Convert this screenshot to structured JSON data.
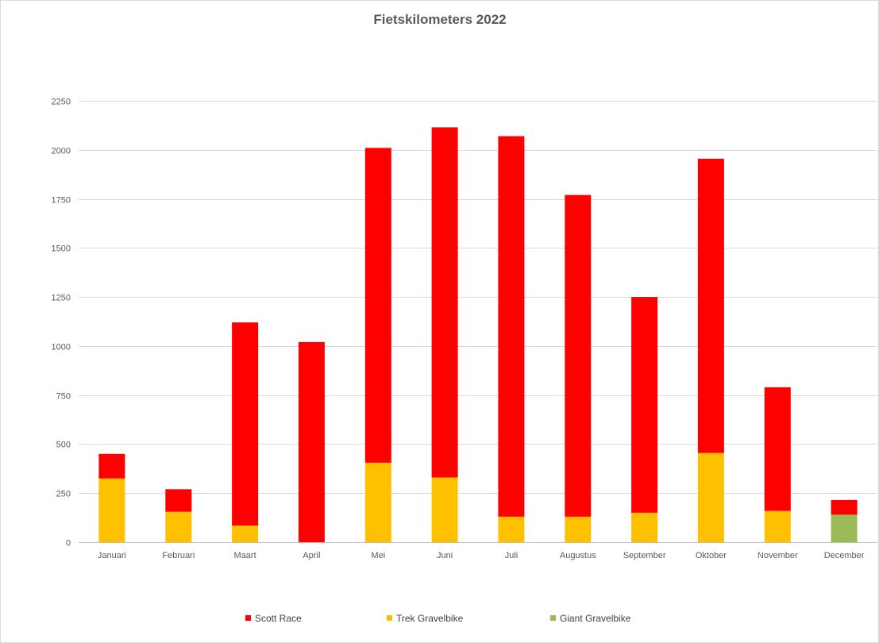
{
  "chart_data": {
    "type": "bar",
    "stacked": true,
    "title": "Fietskilometers 2022",
    "xlabel": "",
    "ylabel": "",
    "ylim": [
      0,
      2250
    ],
    "yticks": [
      0,
      250,
      500,
      750,
      1000,
      1250,
      1500,
      1750,
      2000,
      2250
    ],
    "grid": true,
    "legend_position": "bottom",
    "categories": [
      "Januari",
      "Februari",
      "Maart",
      "April",
      "Mei",
      "Juni",
      "Juli",
      "Augustus",
      "September",
      "Oktober",
      "November",
      "December"
    ],
    "series": [
      {
        "name": "Scott Race",
        "color": "#ff0000",
        "values": [
          125,
          115,
          1035,
          1020,
          1605,
          1785,
          1940,
          1640,
          1100,
          1500,
          630,
          75
        ]
      },
      {
        "name": "Trek Gravelbike",
        "color": "#ffc000",
        "values": [
          325,
          155,
          85,
          0,
          405,
          330,
          130,
          130,
          150,
          455,
          160,
          0
        ]
      },
      {
        "name": "Giant Gravelbike",
        "color": "#9bbb59",
        "values": [
          0,
          0,
          0,
          0,
          0,
          0,
          0,
          0,
          0,
          0,
          0,
          140
        ]
      }
    ],
    "stack_order_bottom_to_top": [
      "Trek Gravelbike",
      "Giant Gravelbike",
      "Scott Race"
    ]
  }
}
